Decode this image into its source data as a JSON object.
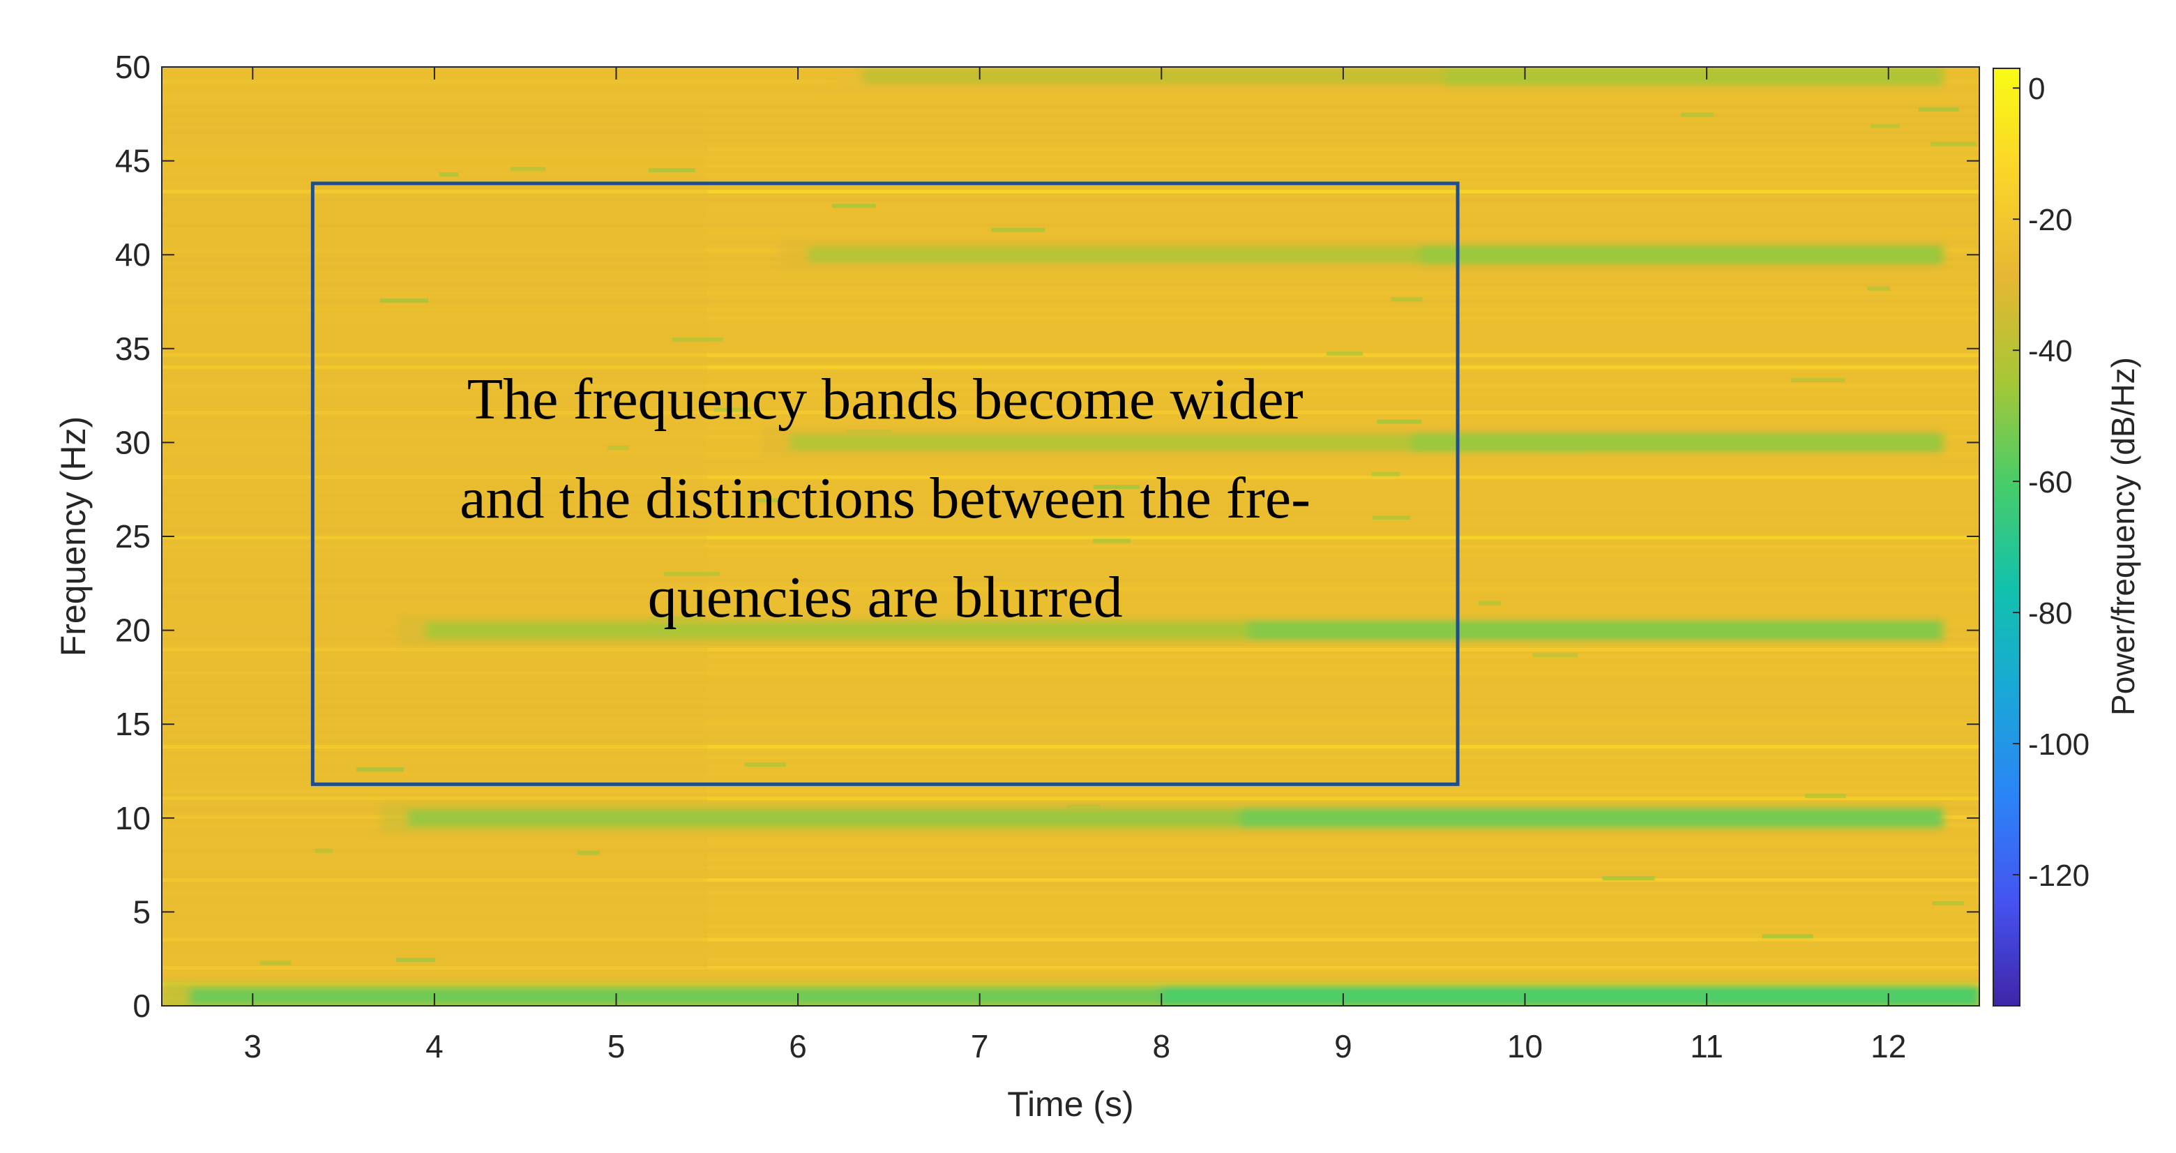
{
  "chart_data": {
    "type": "heatmap",
    "title": "",
    "xlabel": "Time (s)",
    "ylabel": "Frequency (Hz)",
    "xlim": [
      2.5,
      12.5
    ],
    "ylim": [
      0,
      50
    ],
    "x_ticks": [
      "3",
      "4",
      "5",
      "6",
      "7",
      "8",
      "9",
      "10",
      "11",
      "12"
    ],
    "y_ticks": [
      "0",
      "5",
      "10",
      "15",
      "20",
      "25",
      "30",
      "35",
      "40",
      "45",
      "50"
    ],
    "grid": false,
    "colorbar": {
      "label": "Power/frequency (dB/Hz)",
      "range": [
        -140,
        3
      ],
      "ticks": [
        "0",
        "-20",
        "-40",
        "-60",
        "-80",
        "-100",
        "-120"
      ],
      "colormap": "parula",
      "colors": [
        "#3e26a8",
        "#4653f1",
        "#2b84f7",
        "#1aa7d8",
        "#12c1ad",
        "#46cd6a",
        "#a7c736",
        "#e6b732",
        "#fbd42a",
        "#f9fb15"
      ]
    },
    "background_level_db": -25,
    "bands": [
      {
        "freq": 0.5,
        "t_start": 2.5,
        "t_end": 12.5,
        "level_db": -55
      },
      {
        "freq": 10,
        "t_start": 3.7,
        "t_end": 12.3,
        "level_db": -48
      },
      {
        "freq": 20,
        "t_start": 3.8,
        "t_end": 12.3,
        "level_db": -45
      },
      {
        "freq": 30,
        "t_start": 5.8,
        "t_end": 12.3,
        "level_db": -42
      },
      {
        "freq": 40,
        "t_start": 5.9,
        "t_end": 12.3,
        "level_db": -42
      },
      {
        "freq": 49.5,
        "t_start": 6.2,
        "t_end": 12.3,
        "level_db": -38
      }
    ],
    "annotation": {
      "lines": [
        "The frequency bands become wider",
        "and the distinctions between the fre-",
        "quencies are blurred"
      ],
      "box_x": [
        3.33,
        9.63
      ],
      "box_y": [
        11.8,
        43.8
      ],
      "text_color": "#000000",
      "box_color": "#1f4e8c"
    }
  }
}
